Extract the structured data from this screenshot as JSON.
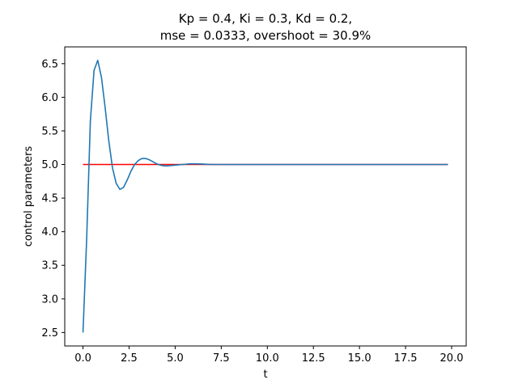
{
  "chart_data": {
    "type": "line",
    "title_line1": "Kp = 0.4, Ki = 0.3, Kd = 0.2,",
    "title_line2": "mse = 0.0333, overshoot = 30.9%",
    "xlabel": "t",
    "ylabel": "control parameters",
    "xlim": [
      -0.99,
      20.79
    ],
    "ylim": [
      2.3,
      6.75
    ],
    "grid": false,
    "xticks": [
      "0.0",
      "2.5",
      "5.0",
      "7.5",
      "10.0",
      "12.5",
      "15.0",
      "17.5",
      "20.0"
    ],
    "yticks": [
      "2.5",
      "3.0",
      "3.5",
      "4.0",
      "4.5",
      "5.0",
      "5.5",
      "6.0",
      "6.5"
    ],
    "series": [
      {
        "color": "#ff0000",
        "x": [
          0.0,
          19.8
        ],
        "y": [
          5.0,
          5.0
        ]
      },
      {
        "color": "#1f77b4",
        "x": [
          0.0,
          0.2,
          0.4,
          0.6,
          0.8,
          1.0,
          1.2,
          1.4,
          1.6,
          1.8,
          2.0,
          2.2,
          2.4,
          2.6,
          2.8,
          3.0,
          3.2,
          3.4,
          3.6,
          3.8,
          4.0,
          4.2,
          4.4,
          4.6,
          4.8,
          5.0,
          5.4,
          5.8,
          6.2,
          6.6,
          7.0,
          8.0,
          9.0,
          10.0,
          12.0,
          14.0,
          16.0,
          18.0,
          19.8
        ],
        "y": [
          2.5,
          3.9,
          5.65,
          6.4,
          6.55,
          6.3,
          5.85,
          5.35,
          4.95,
          4.72,
          4.63,
          4.66,
          4.77,
          4.9,
          5.0,
          5.06,
          5.09,
          5.09,
          5.07,
          5.04,
          5.01,
          4.99,
          4.98,
          4.98,
          4.985,
          4.99,
          5.0,
          5.01,
          5.01,
          5.005,
          5.0,
          5.0,
          5.0,
          5.0,
          5.0,
          5.0,
          5.0,
          5.0,
          5.0
        ]
      }
    ]
  }
}
